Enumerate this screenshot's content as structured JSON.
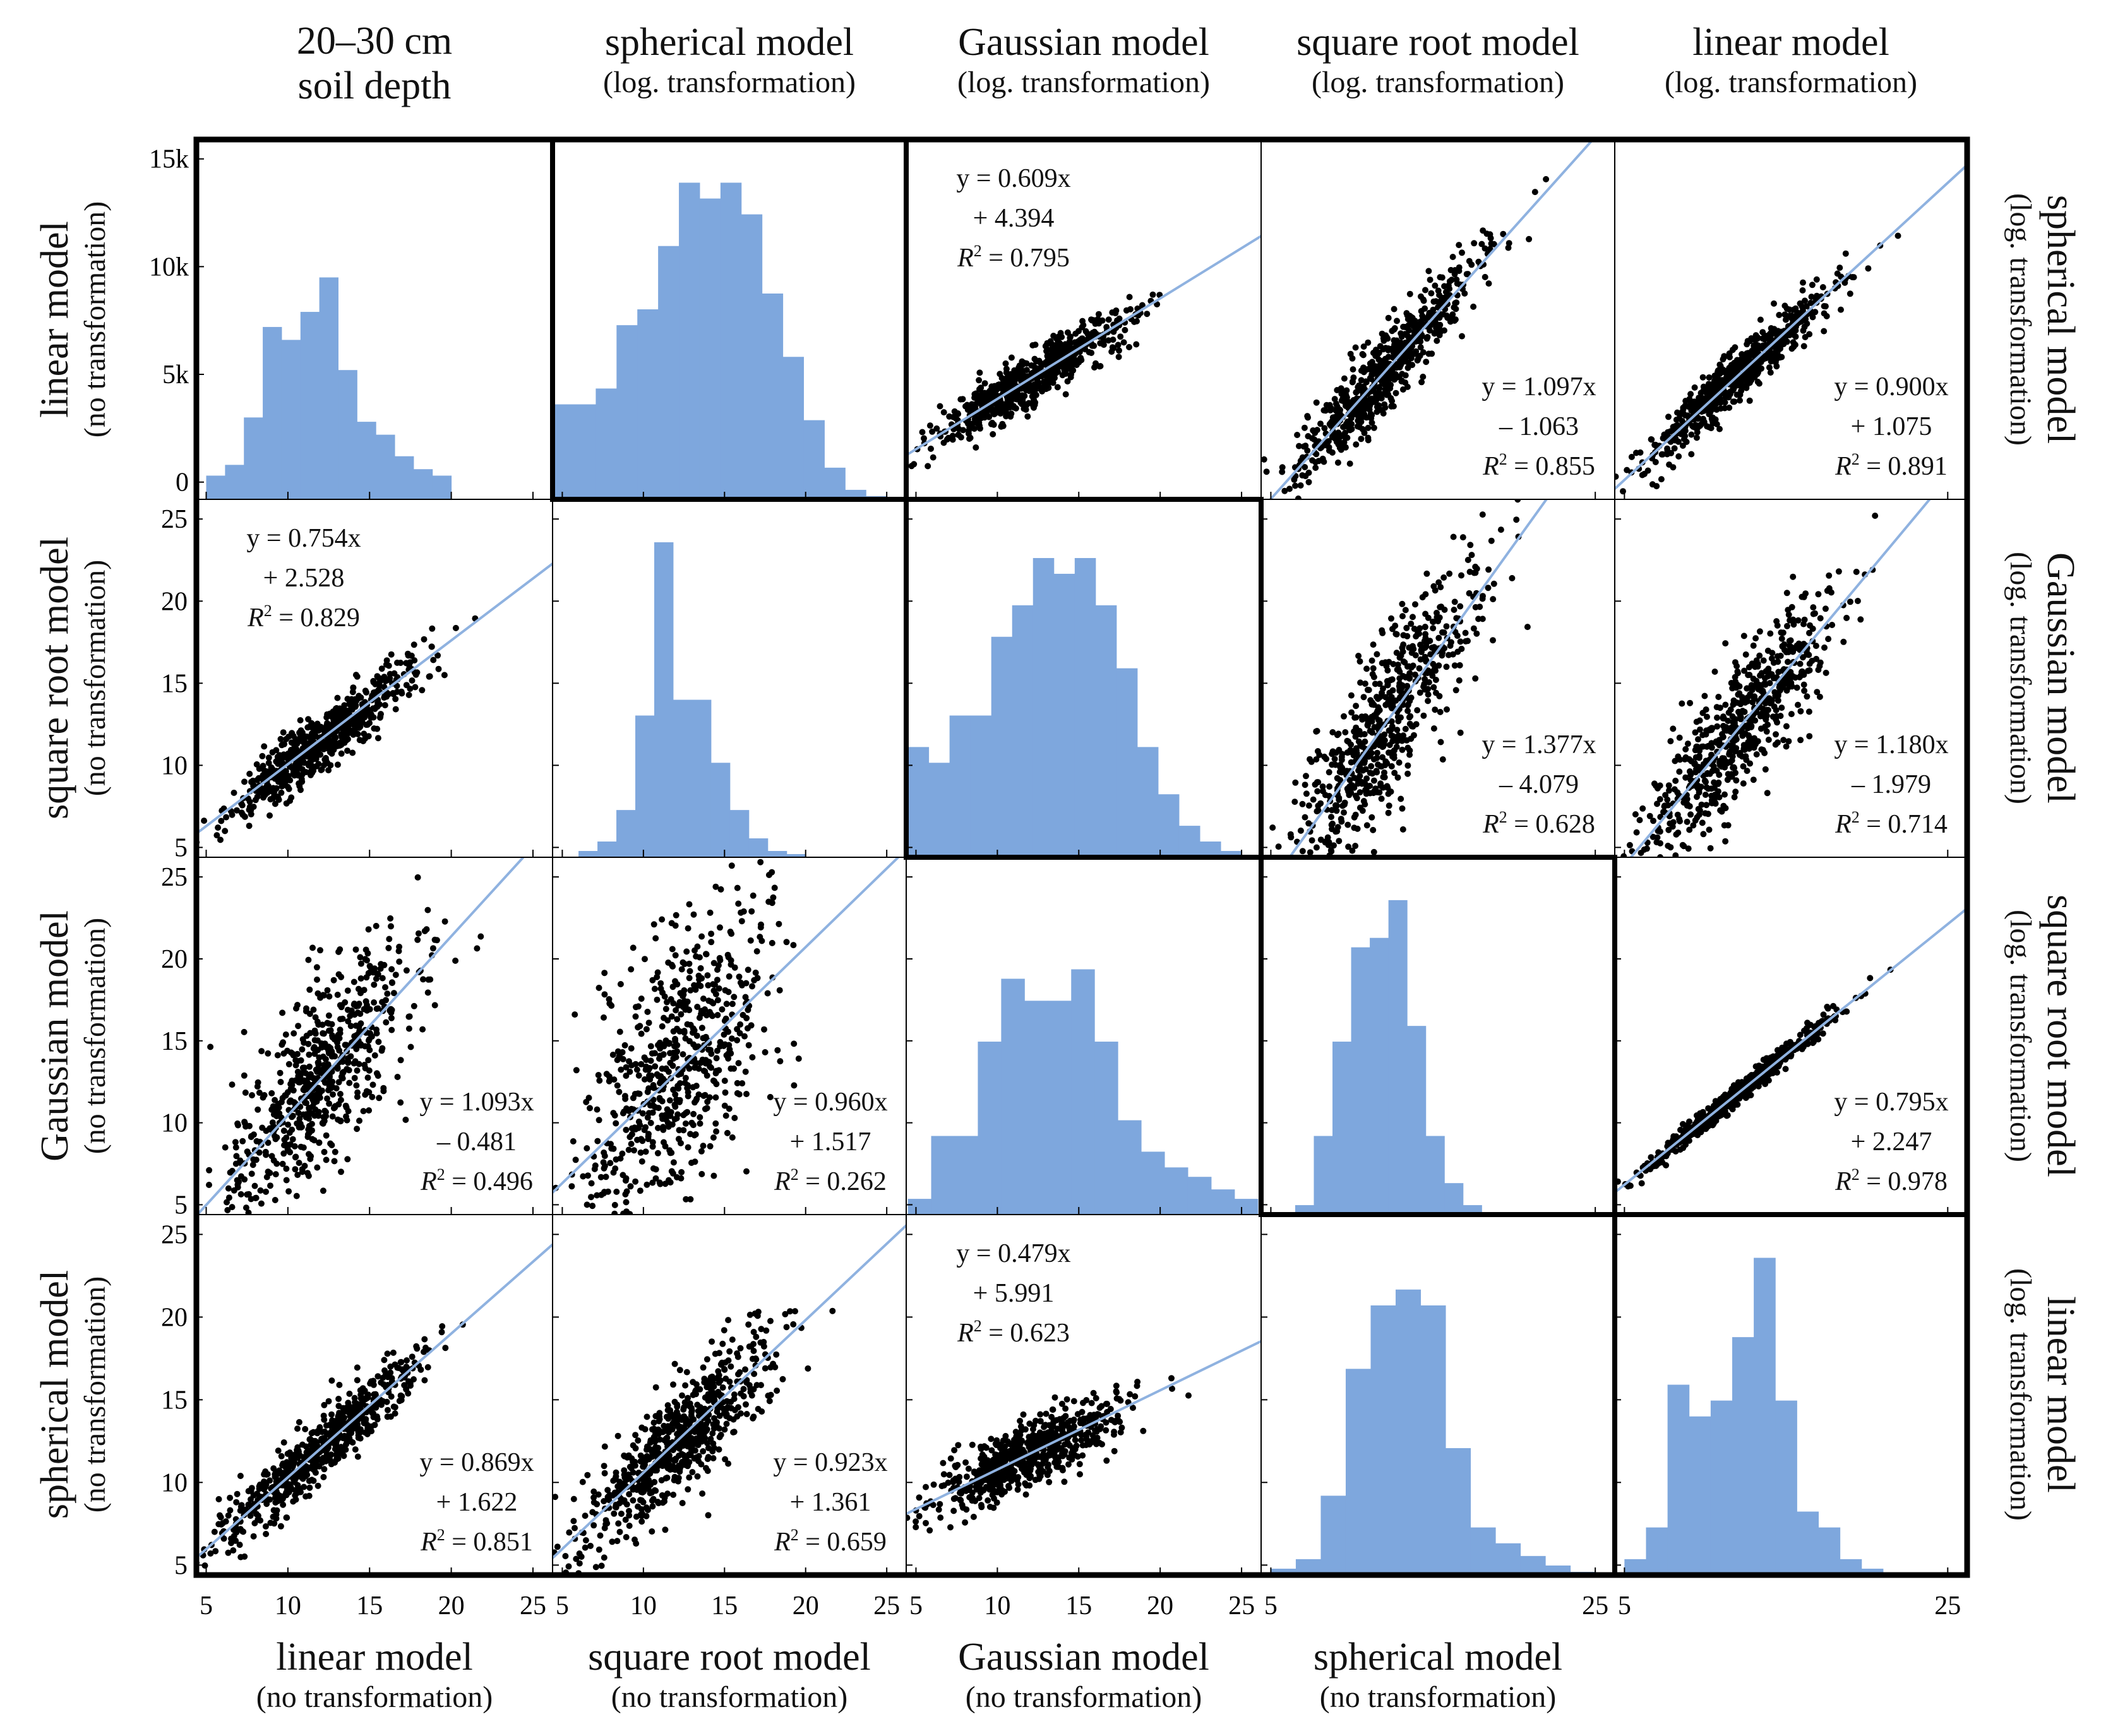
{
  "corner_title": [
    "20–30 cm",
    "soil depth"
  ],
  "top_labels": [
    {
      "main": "spherical model",
      "sub": "(log. transformation)"
    },
    {
      "main": "Gaussian model",
      "sub": "(log. transformation)"
    },
    {
      "main": "square root model",
      "sub": "(log. transformation)"
    },
    {
      "main": "linear model",
      "sub": "(log. transformation)"
    }
  ],
  "bottom_labels": [
    {
      "main": "linear model",
      "sub": "(no transformation)"
    },
    {
      "main": "square root model",
      "sub": "(no transformation)"
    },
    {
      "main": "Gaussian model",
      "sub": "(no transformation)"
    },
    {
      "main": "spherical model",
      "sub": "(no transformation)"
    }
  ],
  "left_labels": [
    {
      "main": "linear model",
      "sub": "(no transformation)"
    },
    {
      "main": "square root model",
      "sub": "(no transformation)"
    },
    {
      "main": "Gaussian model",
      "sub": "(no transformation)"
    },
    {
      "main": "spherical model",
      "sub": "(no transformation)"
    }
  ],
  "right_labels": [
    {
      "main": "spherical model",
      "sub": "(log. transformation)"
    },
    {
      "main": "Gaussian model",
      "sub": "(log. transformation)"
    },
    {
      "main": "square root model",
      "sub": "(log. transformation)"
    },
    {
      "main": "linear model",
      "sub": "(log. transformation)"
    }
  ],
  "chart_data": {
    "type": "scatter-matrix",
    "title": "20–30 cm soil depth",
    "colors": {
      "bar": "#7ea7dd",
      "fit_line": "#8fb2e0",
      "point": "#000000"
    },
    "axis_range": [
      4.4,
      26.2
    ],
    "count_axis": {
      "range": [
        -0.8,
        15.9
      ],
      "ticks": [
        0,
        5,
        10,
        15
      ],
      "tick_labels": [
        "0",
        "5k",
        "10k",
        "15k"
      ]
    },
    "y_ticks": {
      "rows": [
        1,
        2,
        3
      ],
      "values": [
        5,
        10,
        15,
        20,
        25
      ],
      "labels": [
        "5",
        "10",
        "15",
        "20",
        "25"
      ]
    },
    "x_ticks": [
      {
        "col": 0,
        "values": [
          5,
          10,
          15,
          20,
          25
        ],
        "labels": [
          "5",
          "10",
          "15",
          "20",
          "25"
        ]
      },
      {
        "col": 1,
        "values": [
          5,
          10,
          15,
          20,
          25
        ],
        "labels": [
          "5",
          "10",
          "15",
          "20",
          "25"
        ]
      },
      {
        "col": 2,
        "values": [
          5,
          10,
          15,
          20,
          25
        ],
        "labels": [
          "5",
          "10",
          "15",
          "20",
          "25"
        ]
      },
      {
        "col": 3,
        "values": [
          5,
          25
        ],
        "labels": [
          "5",
          "25"
        ]
      },
      {
        "col": 4,
        "values": [
          5,
          25
        ],
        "labels": [
          "5",
          "25"
        ]
      }
    ],
    "histograms": [
      {
        "row": 0,
        "col": 0,
        "units": "count_k",
        "range": [
          5,
          20
        ],
        "values": [
          0.3,
          0.8,
          3.0,
          7.2,
          6.6,
          7.9,
          9.5,
          5.2,
          2.8,
          2.2,
          1.2,
          0.6,
          0.3
        ],
        "thick_border": false
      },
      {
        "row": 0,
        "col": 1,
        "units": "relative",
        "range": [
          4.5,
          25
        ],
        "values": [
          0.3,
          0.3,
          0.35,
          0.55,
          0.6,
          0.8,
          1.0,
          0.95,
          1.0,
          0.9,
          0.65,
          0.45,
          0.25,
          0.1,
          0.03,
          0.01
        ],
        "thick_border": true
      },
      {
        "row": 1,
        "col": 1,
        "units": "relative",
        "range": [
          6,
          20
        ],
        "values": [
          0.02,
          0.05,
          0.15,
          0.45,
          1.0,
          0.5,
          0.5,
          0.3,
          0.15,
          0.06,
          0.02,
          0.01
        ],
        "thick_border": false
      },
      {
        "row": 1,
        "col": 2,
        "units": "relative",
        "range": [
          4.5,
          25
        ],
        "values": [
          0.35,
          0.3,
          0.45,
          0.45,
          0.7,
          0.8,
          0.95,
          0.9,
          0.95,
          0.8,
          0.6,
          0.35,
          0.2,
          0.1,
          0.05,
          0.02
        ],
        "thick_border": true
      },
      {
        "row": 2,
        "col": 2,
        "units": "relative",
        "range": [
          4.5,
          26
        ],
        "values": [
          0.05,
          0.25,
          0.25,
          0.55,
          0.75,
          0.68,
          0.68,
          0.78,
          0.55,
          0.3,
          0.2,
          0.15,
          0.12,
          0.08,
          0.05
        ],
        "thick_border": false
      },
      {
        "row": 2,
        "col": 3,
        "units": "relative",
        "range": [
          6.5,
          18
        ],
        "values": [
          0.03,
          0.25,
          0.55,
          0.85,
          0.88,
          1.0,
          0.6,
          0.25,
          0.1,
          0.03
        ],
        "thick_border": true
      },
      {
        "row": 3,
        "col": 3,
        "units": "relative",
        "range": [
          5,
          25
        ],
        "values": [
          0.02,
          0.05,
          0.25,
          0.65,
          0.85,
          0.9,
          0.85,
          0.4,
          0.15,
          0.1,
          0.06,
          0.03,
          0.01
        ],
        "thick_border": false
      },
      {
        "row": 3,
        "col": 4,
        "units": "relative",
        "range": [
          5,
          21
        ],
        "values": [
          0.05,
          0.15,
          0.6,
          0.5,
          0.55,
          0.75,
          1.0,
          0.55,
          0.2,
          0.15,
          0.05,
          0.02
        ],
        "thick_border": true
      }
    ],
    "scatters": [
      {
        "row": 0,
        "col": 2,
        "slope": 0.609,
        "intercept": 4.394,
        "r2": 0.795,
        "eq": [
          "y = 0.609x",
          "+ 4.394",
          "= 0.795"
        ],
        "label_pos": "top-left"
      },
      {
        "row": 0,
        "col": 3,
        "slope": 1.097,
        "intercept": -1.063,
        "r2": 0.855,
        "eq": [
          "y = 1.097x",
          "– 1.063",
          "= 0.855"
        ],
        "label_pos": "bottom-right"
      },
      {
        "row": 0,
        "col": 4,
        "slope": 0.9,
        "intercept": 1.075,
        "r2": 0.891,
        "eq": [
          "y = 0.900x",
          "+ 1.075",
          "= 0.891"
        ],
        "label_pos": "bottom-right"
      },
      {
        "row": 1,
        "col": 0,
        "slope": 0.754,
        "intercept": 2.528,
        "r2": 0.829,
        "eq": [
          "y = 0.754x",
          "+ 2.528",
          "= 0.829"
        ],
        "label_pos": "top-left"
      },
      {
        "row": 1,
        "col": 3,
        "slope": 1.377,
        "intercept": -4.079,
        "r2": 0.628,
        "eq": [
          "y = 1.377x",
          "– 4.079",
          "= 0.628"
        ],
        "label_pos": "bottom-right"
      },
      {
        "row": 1,
        "col": 4,
        "slope": 1.18,
        "intercept": -1.979,
        "r2": 0.714,
        "eq": [
          "y = 1.180x",
          "– 1.979",
          "= 0.714"
        ],
        "label_pos": "bottom-right"
      },
      {
        "row": 2,
        "col": 0,
        "slope": 1.093,
        "intercept": -0.481,
        "r2": 0.496,
        "eq": [
          "y = 1.093x",
          "– 0.481",
          "= 0.496"
        ],
        "label_pos": "bottom-right"
      },
      {
        "row": 2,
        "col": 1,
        "slope": 0.96,
        "intercept": 1.517,
        "r2": 0.262,
        "eq": [
          "y = 0.960x",
          "+ 1.517",
          "= 0.262"
        ],
        "label_pos": "bottom-right"
      },
      {
        "row": 2,
        "col": 4,
        "slope": 0.795,
        "intercept": 2.247,
        "r2": 0.978,
        "eq": [
          "y = 0.795x",
          "+ 2.247",
          "= 0.978"
        ],
        "label_pos": "bottom-right"
      },
      {
        "row": 3,
        "col": 0,
        "slope": 0.869,
        "intercept": 1.622,
        "r2": 0.851,
        "eq": [
          "y = 0.869x",
          "+ 1.622",
          "= 0.851"
        ],
        "label_pos": "bottom-right"
      },
      {
        "row": 3,
        "col": 1,
        "slope": 0.923,
        "intercept": 1.361,
        "r2": 0.659,
        "eq": [
          "y = 0.923x",
          "+ 1.361",
          "= 0.659"
        ],
        "label_pos": "bottom-right"
      },
      {
        "row": 3,
        "col": 2,
        "slope": 0.479,
        "intercept": 5.991,
        "r2": 0.623,
        "eq": [
          "y = 0.479x",
          "+ 5.991",
          "= 0.623"
        ],
        "label_pos": "top-left"
      }
    ],
    "r2_symbol": "R"
  }
}
